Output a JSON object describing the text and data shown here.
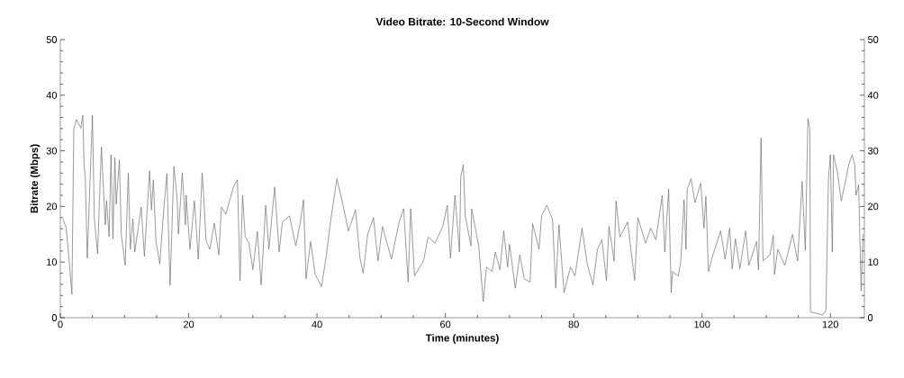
{
  "chart_data": {
    "type": "line",
    "title": "Video Bitrate: 10-Second Window",
    "xlabel": "Time (minutes)",
    "ylabel": "Bitrate (Mbps)",
    "x": [
      0.4,
      0.9,
      1.3,
      1.8,
      2.1,
      2.5,
      3.2,
      3.5,
      3.7,
      3.9,
      4.2,
      5.0,
      5.3,
      5.8,
      6.4,
      7.0,
      7.2,
      7.6,
      7.9,
      8.2,
      8.5,
      8.7,
      9.2,
      9.5,
      10.1,
      10.6,
      10.9,
      11.3,
      11.6,
      12.6,
      13.1,
      13.9,
      14.2,
      14.5,
      14.9,
      15.5,
      16.0,
      16.6,
      17.1,
      17.7,
      18.2,
      18.4,
      19.0,
      19.5,
      19.6,
      20.2,
      20.9,
      21.5,
      22.1,
      22.3,
      22.7,
      23.3,
      24.0,
      24.7,
      25.1,
      25.8,
      26.1,
      27.0,
      27.6,
      28.0,
      28.4,
      28.8,
      29.4,
      30.0,
      30.7,
      31.3,
      32.0,
      32.5,
      33.4,
      34.1,
      34.6,
      35.7,
      36.7,
      37.4,
      37.9,
      38.3,
      39.0,
      39.7,
      40.7,
      41.4,
      42.1,
      43.1,
      43.9,
      44.9,
      46.0,
      46.7,
      47.2,
      47.9,
      48.8,
      49.5,
      50.2,
      51.6,
      52.8,
      53.5,
      54.2,
      54.6,
      55.2,
      56.6,
      57.3,
      58.4,
      59.6,
      60.3,
      60.8,
      61.5,
      62.2,
      62.4,
      62.8,
      63.1,
      64.0,
      64.1,
      65.2,
      65.9,
      66.4,
      67.3,
      67.8,
      68.5,
      69.1,
      69.7,
      70.0,
      70.9,
      71.6,
      72.3,
      73.2,
      73.6,
      74.6,
      75.0,
      75.8,
      76.7,
      77.2,
      77.7,
      78.5,
      79.5,
      80.2,
      81.3,
      82.1,
      83.0,
      83.7,
      84.4,
      85.1,
      85.5,
      86.3,
      86.6,
      87.2,
      88.4,
      89.5,
      90.0,
      91.2,
      92.0,
      92.8,
      93.8,
      94.2,
      94.8,
      95.2,
      95.4,
      96.3,
      96.7,
      97.2,
      97.5,
      97.7,
      98.3,
      98.9,
      99.8,
      100.3,
      100.6,
      101.0,
      101.7,
      102.9,
      103.6,
      104.3,
      104.7,
      105.2,
      105.9,
      106.8,
      107.3,
      108.5,
      108.8,
      109.2,
      109.5,
      110.6,
      111.1,
      111.3,
      111.8,
      112.9,
      114.1,
      114.9,
      115.6,
      116.1,
      116.5,
      116.8,
      116.9,
      117.8,
      118.8,
      119.3,
      119.7,
      120.0,
      120.3,
      120.5,
      121.1,
      121.7,
      122.5,
      122.9,
      123.4,
      123.8,
      124.0,
      124.4,
      124.8,
      125.1
    ],
    "values": [
      17.8,
      16.2,
      11.3,
      4.2,
      34,
      35.6,
      34.1,
      36.4,
      27.5,
      24.8,
      10.7,
      36.4,
      17.8,
      11.5,
      30.7,
      16.7,
      21,
      14.6,
      29.3,
      14.2,
      28.8,
      20.4,
      28.3,
      15,
      9.4,
      26,
      12.3,
      17.8,
      11.8,
      19.9,
      11,
      26.4,
      19.4,
      24.8,
      13.8,
      9.7,
      17.8,
      25.9,
      5.8,
      27.2,
      21.5,
      15,
      26,
      16.7,
      22,
      12.3,
      21,
      10.5,
      26,
      22.7,
      13.9,
      12.3,
      17,
      11.3,
      19.9,
      18.6,
      19.9,
      23.6,
      24.8,
      6.6,
      22,
      14.6,
      13.4,
      8.6,
      15.5,
      5.9,
      20.2,
      12.3,
      23.5,
      11.8,
      17.2,
      18.3,
      12.9,
      17.2,
      21.2,
      7,
      13.7,
      7.8,
      5.6,
      10.7,
      17.2,
      25,
      21,
      15.6,
      19.4,
      10.7,
      8,
      15,
      18,
      10.2,
      16.4,
      10.5,
      17.2,
      19.6,
      6.4,
      19.6,
      7.5,
      10.2,
      14.5,
      13.4,
      16.4,
      20.2,
      10.7,
      22,
      11.8,
      25.3,
      27.5,
      18.3,
      12.9,
      19.6,
      12.9,
      2.9,
      9.1,
      8.3,
      11.8,
      8.6,
      15.6,
      9.1,
      13.2,
      5.3,
      11.3,
      7,
      6.4,
      16.9,
      12.3,
      18.3,
      20.2,
      17.7,
      5.3,
      16.7,
      4.5,
      9.1,
      7.5,
      16.1,
      9.7,
      5.9,
      12.3,
      14,
      6.7,
      16.4,
      10.2,
      21,
      14.5,
      17.2,
      6.7,
      18,
      13.4,
      16.1,
      14,
      22,
      11.8,
      23.1,
      4.5,
      8.3,
      7.5,
      10.2,
      21.2,
      12.3,
      23.1,
      25,
      20.7,
      24.2,
      16.1,
      21.8,
      8.3,
      11.3,
      15.6,
      10.5,
      16.1,
      8.8,
      14.2,
      8.8,
      15.6,
      9.4,
      13.7,
      8.6,
      32.3,
      10.2,
      11.3,
      14.8,
      7.8,
      12.3,
      9.4,
      15,
      10.2,
      24.5,
      12.1,
      35.8,
      33.9,
      1.0,
      0.8,
      0.5,
      1.3,
      24.8,
      29.3,
      11.8,
      29.3,
      26.1,
      21,
      25.3,
      27.7,
      29.3,
      27.4,
      22,
      23.9,
      4.8,
      15
    ],
    "color": "#707070",
    "xlim": [
      0,
      125.3
    ],
    "ylim": [
      0,
      50
    ],
    "xticks": [
      0,
      20,
      40,
      60,
      80,
      100,
      120
    ],
    "yticks": [
      0,
      10,
      20,
      30,
      40,
      50
    ],
    "y2lim": [
      0,
      50
    ],
    "y2ticks": [
      0,
      10,
      20,
      30,
      40,
      50
    ]
  }
}
